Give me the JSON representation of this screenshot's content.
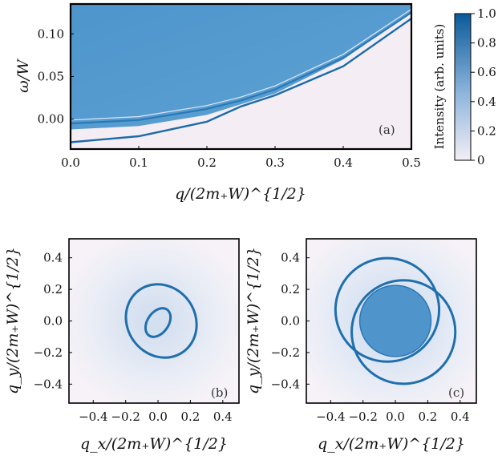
{
  "chart_data": [
    {
      "type": "heatmap",
      "panel_label": "(a)",
      "xlabel": "q/(2m₊W)^{1/2}",
      "ylabel": "ω/W",
      "xlim": [
        0.0,
        0.5
      ],
      "ylim": [
        -0.035,
        0.135
      ],
      "x_ticks": [
        "0.0",
        "0.1",
        "0.2",
        "0.3",
        "0.4",
        "0.5"
      ],
      "y_ticks": [
        "0.10",
        "0.05",
        "0.00"
      ],
      "x_tick_values": [
        0.0,
        0.1,
        0.2,
        0.3,
        0.4,
        0.5
      ],
      "y_tick_values": [
        0.1,
        0.05,
        0.0
      ],
      "features": {
        "continuum_upper_edge": [
          [
            0.0,
            -0.012
          ],
          [
            0.1,
            -0.008
          ],
          [
            0.2,
            0.005
          ],
          [
            0.3,
            0.03
          ],
          [
            0.4,
            0.07
          ],
          [
            0.5,
            0.125
          ]
        ],
        "branch_1": [
          [
            0.0,
            -0.005
          ],
          [
            0.1,
            -0.001
          ],
          [
            0.2,
            0.012
          ],
          [
            0.25,
            0.022
          ],
          [
            0.3,
            0.035
          ],
          [
            0.4,
            0.072
          ],
          [
            0.5,
            0.125
          ]
        ],
        "branch_2": [
          [
            0.0,
            -0.027
          ],
          [
            0.1,
            -0.02
          ],
          [
            0.2,
            -0.003
          ],
          [
            0.25,
            0.015
          ],
          [
            0.3,
            0.028
          ],
          [
            0.4,
            0.062
          ],
          [
            0.5,
            0.118
          ]
        ]
      }
    },
    {
      "type": "heatmap",
      "panel_label": "(b)",
      "xlabel": "q_x/(2m₊W)^{1/2}",
      "ylabel": "q_y/(2m₊W)^{1/2}",
      "xlim": [
        -0.55,
        0.5
      ],
      "ylim": [
        -0.52,
        0.52
      ],
      "x_ticks": [
        "−0.4",
        "−0.2",
        "0.0",
        "0.2",
        "0.4"
      ],
      "y_ticks": [
        "0.4",
        "0.2",
        "0.0",
        "−0.2",
        "−0.4"
      ],
      "x_tick_values": [
        -0.4,
        -0.2,
        0.0,
        0.2,
        0.4
      ],
      "y_tick_values": [
        0.4,
        0.2,
        0.0,
        -0.2,
        -0.4
      ],
      "features": {
        "outer_ring": {
          "cx": 0.02,
          "cy": 0.0,
          "rx": 0.21,
          "ry": 0.24,
          "rotation_deg": -35
        },
        "inner_ring": {
          "cx": 0.0,
          "cy": -0.01,
          "rx": 0.065,
          "ry": 0.1,
          "rotation_deg": 35
        }
      }
    },
    {
      "type": "heatmap",
      "panel_label": "(c)",
      "xlabel": "q_x/(2m₊W)^{1/2}",
      "ylabel": "q_y/(2m₊W)^{1/2}",
      "xlim": [
        -0.55,
        0.5
      ],
      "ylim": [
        -0.52,
        0.52
      ],
      "x_ticks": [
        "−0.4",
        "−0.2",
        "0.0",
        "0.2",
        "0.4"
      ],
      "y_ticks": [
        "0.4",
        "0.2",
        "0.0",
        "−0.2",
        "−0.4"
      ],
      "x_tick_values": [
        -0.4,
        -0.2,
        0.0,
        0.2,
        0.4
      ],
      "y_tick_values": [
        0.4,
        0.2,
        0.0,
        -0.2,
        -0.4
      ],
      "features": {
        "filled_disk": {
          "cx": 0.0,
          "cy": 0.0,
          "r": 0.22
        },
        "ring_1": {
          "cx": -0.05,
          "cy": 0.07,
          "r": 0.32
        },
        "ring_2": {
          "cx": 0.05,
          "cy": -0.07,
          "r": 0.32
        }
      }
    }
  ],
  "colorbar": {
    "label": "Intensity (arb. units)",
    "ticks": [
      "1.0",
      "0.8",
      "0.6",
      "0.4",
      "0.2",
      "0"
    ],
    "tick_values": [
      1.0,
      0.8,
      0.6,
      0.4,
      0.2,
      0.0
    ],
    "color_low": "#f4eef4",
    "color_mid": "#8fb6dd",
    "color_high": "#0b5a9a"
  }
}
